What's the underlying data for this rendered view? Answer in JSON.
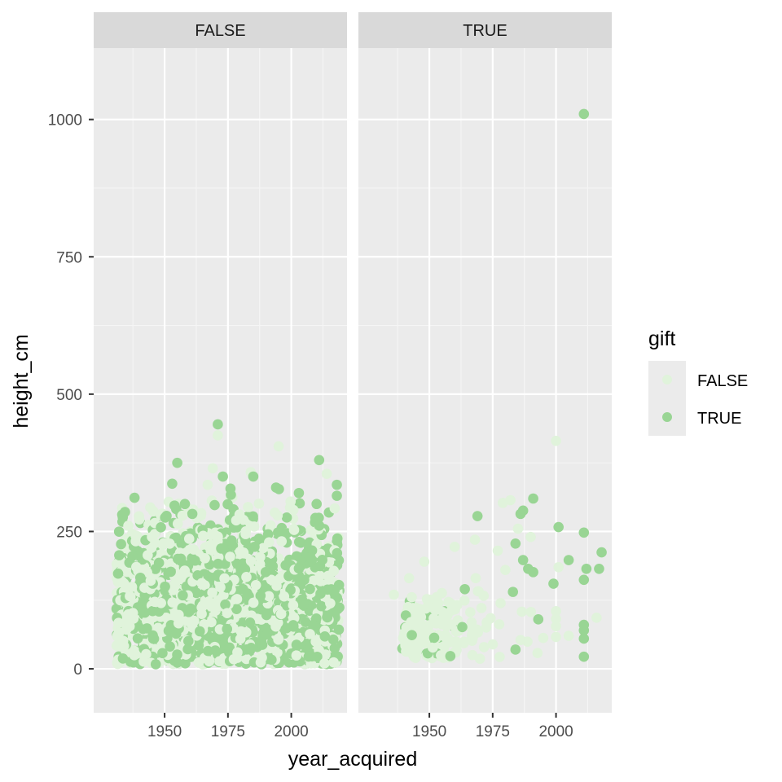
{
  "chart_data": {
    "type": "scatter",
    "facet_by": "gift",
    "facets": [
      "FALSE",
      "TRUE"
    ],
    "xlabel": "year_acquired",
    "ylabel": "height_cm",
    "xlim": [
      1922,
      2022
    ],
    "ylim": [
      -80,
      1130
    ],
    "x_ticks": [
      1950,
      1975,
      2000
    ],
    "x_minor_ticks": [
      1937.5,
      1962.5,
      1987.5,
      2012.5
    ],
    "y_ticks": [
      0,
      250,
      500,
      750,
      1000
    ],
    "y_minor_ticks": [
      125,
      375,
      625,
      875
    ],
    "grid": true,
    "legend": {
      "title": "gift",
      "position": "right",
      "entries": [
        {
          "label": "FALSE",
          "color": "#e0f3db"
        },
        {
          "label": "TRUE",
          "color": "#99d594"
        }
      ]
    },
    "colors": {
      "FALSE": "#e0f3db",
      "TRUE": "#99d594"
    },
    "highlight_points": {
      "FALSE": [
        {
          "x": 1971,
          "y": 445,
          "series": "TRUE"
        },
        {
          "x": 1971,
          "y": 425,
          "series": "FALSE"
        },
        {
          "x": 1995,
          "y": 405,
          "series": "FALSE"
        },
        {
          "x": 1955,
          "y": 375,
          "series": "TRUE"
        },
        {
          "x": 2011,
          "y": 380,
          "series": "TRUE"
        },
        {
          "x": 1969,
          "y": 365,
          "series": "FALSE"
        },
        {
          "x": 1973,
          "y": 350,
          "series": "TRUE"
        },
        {
          "x": 1984,
          "y": 358,
          "series": "FALSE"
        },
        {
          "x": 1985,
          "y": 350,
          "series": "TRUE"
        },
        {
          "x": 2014,
          "y": 355,
          "series": "FALSE"
        },
        {
          "x": 1953,
          "y": 337,
          "series": "TRUE"
        },
        {
          "x": 1967,
          "y": 335,
          "series": "FALSE"
        },
        {
          "x": 2018,
          "y": 335,
          "series": "TRUE"
        },
        {
          "x": 1976,
          "y": 328,
          "series": "TRUE"
        },
        {
          "x": 1994,
          "y": 330,
          "series": "TRUE"
        },
        {
          "x": 2018,
          "y": 315,
          "series": "TRUE"
        },
        {
          "x": 1958,
          "y": 300,
          "series": "TRUE"
        },
        {
          "x": 1940,
          "y": 272,
          "series": "FALSE"
        },
        {
          "x": 1945,
          "y": 240,
          "series": "FALSE"
        },
        {
          "x": 2010,
          "y": 300,
          "series": "TRUE"
        },
        {
          "x": 2003,
          "y": 320,
          "series": "TRUE"
        }
      ],
      "TRUE": [
        {
          "x": 2011,
          "y": 1010,
          "series": "TRUE"
        },
        {
          "x": 2000,
          "y": 415,
          "series": "FALSE"
        },
        {
          "x": 1991,
          "y": 310,
          "series": "TRUE"
        },
        {
          "x": 1982,
          "y": 307,
          "series": "FALSE"
        },
        {
          "x": 1979,
          "y": 302,
          "series": "FALSE"
        },
        {
          "x": 1987,
          "y": 288,
          "series": "TRUE"
        },
        {
          "x": 1986,
          "y": 282,
          "series": "TRUE"
        },
        {
          "x": 1969,
          "y": 278,
          "series": "TRUE"
        },
        {
          "x": 2001,
          "y": 258,
          "series": "TRUE"
        },
        {
          "x": 1985,
          "y": 255,
          "series": "FALSE"
        },
        {
          "x": 2011,
          "y": 248,
          "series": "TRUE"
        },
        {
          "x": 1990,
          "y": 240,
          "series": "FALSE"
        },
        {
          "x": 1968,
          "y": 235,
          "series": "FALSE"
        },
        {
          "x": 1984,
          "y": 228,
          "series": "TRUE"
        },
        {
          "x": 1977,
          "y": 215,
          "series": "FALSE"
        },
        {
          "x": 2018,
          "y": 212,
          "series": "TRUE"
        },
        {
          "x": 1960,
          "y": 222,
          "series": "FALSE"
        },
        {
          "x": 2005,
          "y": 198,
          "series": "TRUE"
        },
        {
          "x": 1987,
          "y": 198,
          "series": "TRUE"
        },
        {
          "x": 1948,
          "y": 195,
          "series": "FALSE"
        },
        {
          "x": 2001,
          "y": 185,
          "series": "FALSE"
        },
        {
          "x": 2012,
          "y": 182,
          "series": "TRUE"
        },
        {
          "x": 2017,
          "y": 182,
          "series": "TRUE"
        },
        {
          "x": 1989,
          "y": 182,
          "series": "TRUE"
        },
        {
          "x": 1991,
          "y": 176,
          "series": "TRUE"
        },
        {
          "x": 1980,
          "y": 180,
          "series": "FALSE"
        },
        {
          "x": 1942,
          "y": 165,
          "series": "FALSE"
        },
        {
          "x": 2011,
          "y": 162,
          "series": "TRUE"
        },
        {
          "x": 1999,
          "y": 155,
          "series": "TRUE"
        },
        {
          "x": 1964,
          "y": 145,
          "series": "TRUE"
        },
        {
          "x": 1983,
          "y": 140,
          "series": "TRUE"
        },
        {
          "x": 1936,
          "y": 135,
          "series": "FALSE"
        },
        {
          "x": 1993,
          "y": 90,
          "series": "TRUE"
        },
        {
          "x": 2011,
          "y": 80,
          "series": "TRUE"
        },
        {
          "x": 2011,
          "y": 70,
          "series": "TRUE"
        },
        {
          "x": 2011,
          "y": 55,
          "series": "TRUE"
        },
        {
          "x": 2011,
          "y": 22,
          "series": "TRUE"
        },
        {
          "x": 1984,
          "y": 35,
          "series": "TRUE"
        },
        {
          "x": 1963,
          "y": 76,
          "series": "TRUE"
        },
        {
          "x": 2016,
          "y": 93,
          "series": "FALSE"
        },
        {
          "x": 2005,
          "y": 60,
          "series": "FALSE"
        },
        {
          "x": 2000,
          "y": 105,
          "series": "FALSE"
        },
        {
          "x": 1967,
          "y": 25,
          "series": "FALSE"
        }
      ]
    }
  }
}
